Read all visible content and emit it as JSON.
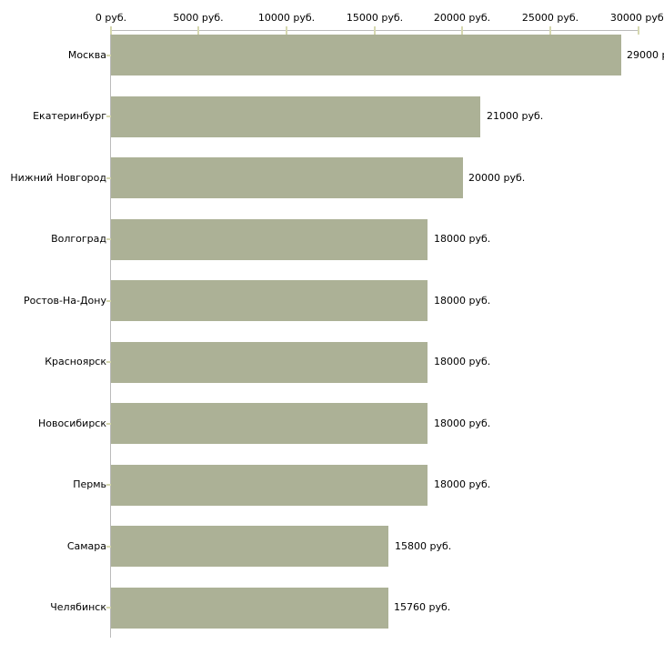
{
  "chart_data": {
    "type": "bar",
    "orientation": "horizontal",
    "title": "",
    "xlabel": "",
    "ylabel": "",
    "xlim": [
      0,
      30000
    ],
    "grid": false,
    "legend": false,
    "categories": [
      "Москва",
      "Екатеринбург",
      "Нижний Новгород",
      "Волгоград",
      "Ростов-На-Дону",
      "Красноярск",
      "Новосибирск",
      "Пермь",
      "Самара",
      "Челябинск"
    ],
    "values": [
      29000,
      21000,
      20000,
      18000,
      18000,
      18000,
      18000,
      18000,
      15800,
      15760
    ],
    "value_labels": [
      "29000 р",
      "21000 руб.",
      "20000 руб.",
      "18000 руб.",
      "18000 руб.",
      "18000 руб.",
      "18000 руб.",
      "18000 руб.",
      "15800 руб.",
      "15760 руб."
    ],
    "x_ticks": [
      0,
      5000,
      10000,
      15000,
      20000,
      25000,
      30000
    ],
    "x_tick_labels": [
      "0 руб.",
      "5000 руб.",
      "10000 руб.",
      "15000 руб.",
      "20000 руб.",
      "25000 руб.",
      "30000 руб."
    ],
    "colors": {
      "bar": "#acb196",
      "axis": "#bbbbbb",
      "tick": "#d6d8b0",
      "text": "#000000",
      "background": "#ffffff"
    }
  }
}
